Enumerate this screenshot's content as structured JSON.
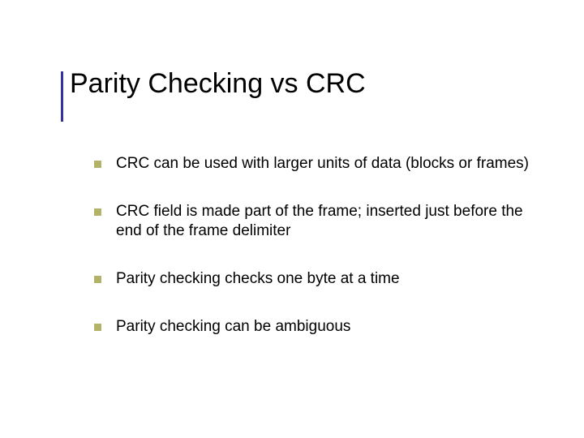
{
  "slide": {
    "title": "Parity Checking vs CRC",
    "bullets": [
      "CRC can be used with larger units of data (blocks or frames)",
      "CRC field is made part of the frame; inserted just before the end of the frame delimiter",
      "Parity checking checks one byte at a time",
      "Parity checking can be ambiguous"
    ]
  },
  "style": {
    "background_color": "#ffffff",
    "title_color": "#000000",
    "title_fontsize": 34,
    "title_accent_color": "#333399",
    "bullet_marker_color": "#b2b268",
    "bullet_marker_shape": "square",
    "bullet_marker_size": 9,
    "body_text_color": "#000000",
    "body_fontsize": 19,
    "font_family": "Verdana"
  }
}
